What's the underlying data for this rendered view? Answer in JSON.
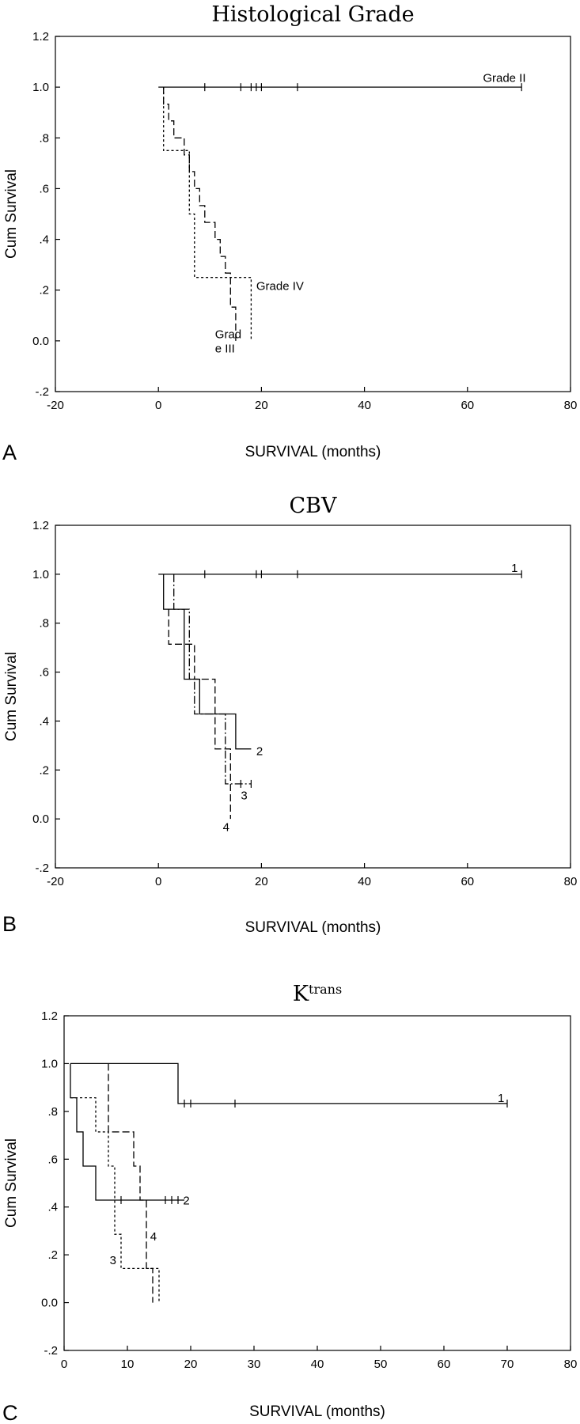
{
  "chart_data": [
    {
      "type": "line",
      "panel_label": "A",
      "title": "Histological Grade",
      "xlabel": "SURVIVAL (months)",
      "ylabel": "Cum Survival",
      "xlim": [
        -20,
        80
      ],
      "ylim": [
        -0.2,
        1.2
      ],
      "x_ticks": [
        "-20",
        "0",
        "20",
        "40",
        "60",
        "80"
      ],
      "y_ticks": [
        "-.2",
        "0.0",
        ".2",
        ".4",
        ".6",
        ".8",
        "1.0",
        "1.2"
      ],
      "series": [
        {
          "name": "Grade II",
          "style": "solid",
          "x": [
            0,
            70.5
          ],
          "y": [
            1.0,
            1.0
          ],
          "censor_x": [
            9,
            16,
            18,
            19,
            20,
            27,
            70.5
          ],
          "label_at": [
            63,
            1.02
          ]
        },
        {
          "name": "Grade III",
          "style": "dashed",
          "x": [
            1,
            1,
            2,
            2,
            3,
            3,
            5,
            5,
            6,
            6,
            7,
            7,
            8,
            8,
            9,
            9,
            11,
            11,
            12,
            12,
            13,
            13,
            14,
            14,
            15,
            15
          ],
          "y": [
            1.0,
            0.933,
            0.933,
            0.867,
            0.867,
            0.8,
            0.8,
            0.733,
            0.733,
            0.667,
            0.667,
            0.6,
            0.6,
            0.533,
            0.533,
            0.467,
            0.467,
            0.4,
            0.4,
            0.333,
            0.333,
            0.267,
            0.267,
            0.133,
            0.133,
            0.0
          ],
          "label": [
            "Grad",
            "e III"
          ],
          "label_at": [
            11,
            0.01
          ]
        },
        {
          "name": "Grade IV",
          "style": "dotted",
          "x": [
            1,
            1,
            6,
            6,
            7,
            7,
            18,
            18
          ],
          "y": [
            1.0,
            0.75,
            0.75,
            0.5,
            0.5,
            0.25,
            0.25,
            0.0
          ],
          "label_at": [
            19,
            0.2
          ]
        }
      ]
    },
    {
      "type": "line",
      "panel_label": "B",
      "title": "CBV",
      "xlabel": "SURVIVAL (months)",
      "ylabel": "Cum Survival",
      "xlim": [
        -20,
        80
      ],
      "ylim": [
        -0.2,
        1.2
      ],
      "x_ticks": [
        "-20",
        "0",
        "20",
        "40",
        "60",
        "80"
      ],
      "y_ticks": [
        "-.2",
        "0.0",
        ".2",
        ".4",
        ".6",
        ".8",
        "1.0",
        "1.2"
      ],
      "series": [
        {
          "name": "1",
          "style": "solid",
          "x": [
            0,
            70.5
          ],
          "y": [
            1.0,
            1.0
          ],
          "censor_x": [
            9,
            19,
            20,
            27,
            70.5
          ],
          "label_at": [
            68.5,
            1.01
          ]
        },
        {
          "name": "2",
          "style": "solid",
          "x": [
            1,
            1,
            5,
            5,
            8,
            8,
            15,
            15,
            18
          ],
          "y": [
            1.0,
            0.857,
            0.857,
            0.571,
            0.571,
            0.429,
            0.429,
            0.286,
            0.286
          ],
          "label_at": [
            19,
            0.26
          ]
        },
        {
          "name": "3",
          "style": "dashdot",
          "x": [
            3,
            3,
            6,
            6,
            7,
            7,
            13,
            13,
            18
          ],
          "y": [
            1.0,
            0.857,
            0.857,
            0.571,
            0.571,
            0.429,
            0.429,
            0.143,
            0.143
          ],
          "censor_x": [
            16,
            18
          ],
          "label_at": [
            16,
            0.08
          ]
        },
        {
          "name": "4",
          "style": "dashed",
          "x": [
            2,
            2,
            7,
            7,
            11,
            11,
            14,
            14
          ],
          "y": [
            0.857,
            0.714,
            0.714,
            0.571,
            0.571,
            0.286,
            0.286,
            0.0
          ],
          "label_at": [
            12.5,
            -0.05
          ]
        }
      ]
    },
    {
      "type": "line",
      "panel_label": "C",
      "title": "K",
      "title_superscript": "trans",
      "xlabel": "SURVIVAL (months)",
      "ylabel": "Cum Survival",
      "xlim": [
        0,
        80
      ],
      "ylim": [
        -0.2,
        1.2
      ],
      "x_ticks": [
        "0",
        "10",
        "20",
        "30",
        "40",
        "50",
        "60",
        "70",
        "80"
      ],
      "y_ticks": [
        "-.2",
        "0.0",
        ".2",
        ".4",
        ".6",
        ".8",
        "1.0",
        "1.2"
      ],
      "series": [
        {
          "name": "1",
          "style": "solid",
          "x": [
            1,
            18,
            18,
            70
          ],
          "y": [
            1.0,
            1.0,
            0.833,
            0.833
          ],
          "censor_x": [
            19,
            20,
            27,
            70
          ],
          "label_at": [
            68.5,
            0.84
          ]
        },
        {
          "name": "2",
          "style": "solid",
          "x": [
            1,
            1,
            2,
            2,
            3,
            3,
            5,
            5,
            19
          ],
          "y": [
            1.0,
            0.857,
            0.857,
            0.714,
            0.714,
            0.571,
            0.571,
            0.429,
            0.429
          ],
          "censor_x": [
            9,
            16,
            17,
            18
          ],
          "label_at": [
            18.8,
            0.41
          ]
        },
        {
          "name": "3",
          "style": "dotted",
          "x": [
            1,
            5,
            5,
            7,
            7,
            8,
            8,
            9,
            9,
            14,
            14,
            15,
            15
          ],
          "y": [
            0.857,
            0.857,
            0.714,
            0.714,
            0.571,
            0.571,
            0.286,
            0.286,
            0.143,
            0.143,
            0.143,
            0.143,
            0.0
          ],
          "label_at": [
            7.2,
            0.16
          ]
        },
        {
          "name": "4",
          "style": "dashed",
          "x": [
            7,
            7,
            11,
            11,
            12,
            12,
            13,
            13,
            14,
            14
          ],
          "y": [
            1.0,
            0.714,
            0.714,
            0.571,
            0.571,
            0.429,
            0.429,
            0.143,
            0.143,
            0.0
          ],
          "label_at": [
            13.6,
            0.26
          ]
        }
      ]
    }
  ]
}
